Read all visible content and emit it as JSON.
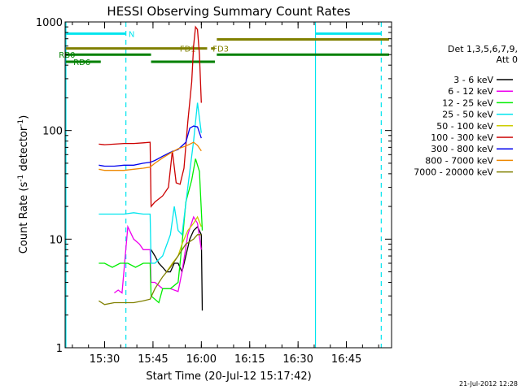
{
  "chart_data": {
    "type": "line",
    "title": "HESSI Observing Summary Count Rates",
    "xlabel": "Start Time (20-Jul-12 15:17:42)",
    "ylabel": "Count Rate (s⁻¹ detector⁻¹)",
    "ylabel_parts": {
      "main": "Count Rate (s",
      "sup1": "-1",
      "mid": " detector",
      "sup2": "-1",
      "end": ")"
    },
    "y_scale": "log",
    "ylim": [
      1,
      1000
    ],
    "xlim": [
      15.2958,
      16.9833
    ],
    "x_ticks": [
      {
        "value": 15.5,
        "label": "15:30"
      },
      {
        "value": 15.75,
        "label": "15:45"
      },
      {
        "value": 16.0,
        "label": "16:00"
      },
      {
        "value": 16.25,
        "label": "16:15"
      },
      {
        "value": 16.5,
        "label": "16:30"
      },
      {
        "value": 16.75,
        "label": "16:45"
      }
    ],
    "y_ticks": [
      {
        "value": 1,
        "label": "1"
      },
      {
        "value": 10,
        "label": "10"
      },
      {
        "value": 100,
        "label": "100"
      },
      {
        "value": 1000,
        "label": "1000"
      }
    ],
    "legend_header": [
      "Det 1,3,5,6,7,9,",
      "Att 0"
    ],
    "legend_position": "right",
    "timestamp": "21-Jul-2012 12:28",
    "vertical_lines": [
      {
        "x": 15.3,
        "style": "solid",
        "color": "#00e5ee"
      },
      {
        "x": 15.61,
        "style": "dashed",
        "color": "#00e5ee"
      },
      {
        "x": 16.59,
        "style": "solid",
        "color": "#00e5ee"
      },
      {
        "x": 16.93,
        "style": "dashed",
        "color": "#00e5ee"
      }
    ],
    "flag_bars": [
      {
        "label": "N",
        "color": "#00e5ee",
        "y": 780,
        "segments": [
          [
            15.3,
            15.61
          ],
          [
            16.59,
            16.93
          ]
        ],
        "label_x": 15.615
      },
      {
        "label": "FD1",
        "color": "#808000",
        "y": 570,
        "segments": [
          [
            15.3,
            16.03
          ]
        ],
        "label_x": 15.88
      },
      {
        "label": "FD3",
        "color": "#808000",
        "y": 570,
        "segments": [
          [
            16.05,
            16.07
          ]
        ],
        "label_x": 16.05
      },
      {
        "label": "",
        "color": "#808000",
        "y": 690,
        "segments": [
          [
            16.08,
            16.97
          ]
        ],
        "label_x": null
      },
      {
        "label": "RB0",
        "color": "#008000",
        "y": 500,
        "segments": [
          [
            15.3,
            15.74
          ],
          [
            16.08,
            16.97
          ]
        ],
        "label_x": 15.255
      },
      {
        "label": "RD6",
        "color": "#008000",
        "y": 430,
        "segments": [
          [
            15.3,
            15.48
          ],
          [
            15.74,
            16.07
          ]
        ],
        "label_x": 15.33
      }
    ],
    "series": [
      {
        "name": "3 - 6 keV",
        "color": "#000000",
        "x": [
          15.735,
          15.74,
          15.76,
          15.78,
          15.8,
          15.82,
          15.84,
          15.86,
          15.88,
          15.9,
          15.92,
          15.94,
          15.96,
          15.98,
          16.0,
          16.005
        ],
        "y": [
          8,
          8,
          7,
          6,
          5.5,
          5,
          5,
          6,
          6,
          5,
          7,
          10,
          12,
          13,
          11,
          2.2
        ]
      },
      {
        "name": "6 - 12 keV",
        "color": "#ee00ee",
        "x": [
          15.55,
          15.57,
          15.59,
          15.62,
          15.65,
          15.68,
          15.7,
          15.735,
          15.74,
          15.76,
          15.8,
          15.84,
          15.88,
          15.9,
          15.93,
          15.96,
          15.98,
          16.0
        ],
        "y": [
          3.2,
          3.4,
          3.2,
          13,
          10,
          9,
          8,
          8,
          4,
          4,
          3.5,
          3.5,
          3.3,
          5,
          11,
          16,
          14,
          8
        ]
      },
      {
        "name": "12 - 25 keV",
        "color": "#00ee00",
        "x": [
          15.47,
          15.5,
          15.54,
          15.58,
          15.62,
          15.66,
          15.7,
          15.735,
          15.74,
          15.78,
          15.8,
          15.84,
          15.88,
          15.9,
          15.92,
          15.95,
          15.97,
          15.99,
          16.005
        ],
        "y": [
          6,
          6,
          5.5,
          6,
          6,
          5.5,
          6,
          6,
          3,
          2.6,
          3.5,
          3.5,
          4,
          9,
          22,
          35,
          55,
          42,
          12
        ]
      },
      {
        "name": "25 - 50 keV",
        "color": "#00e5ee",
        "x": [
          15.47,
          15.5,
          15.55,
          15.6,
          15.65,
          15.7,
          15.735,
          15.74,
          15.76,
          15.8,
          15.84,
          15.86,
          15.88,
          15.9,
          15.93,
          15.96,
          15.98,
          16.0
        ],
        "y": [
          17,
          17,
          17,
          17,
          17.5,
          17,
          17,
          6,
          6,
          7,
          11,
          20,
          12,
          11,
          30,
          80,
          180,
          95
        ]
      },
      {
        "name": "50 - 100 keV",
        "color": "#cccc00",
        "x": [
          15.82,
          15.85,
          15.88,
          15.9,
          15.93,
          15.96,
          15.98,
          16.0
        ],
        "y": [
          5,
          6,
          7,
          9,
          12,
          14,
          16,
          13
        ]
      },
      {
        "name": "100 - 300 keV",
        "color": "#cc0000",
        "x": [
          15.47,
          15.5,
          15.55,
          15.6,
          15.65,
          15.7,
          15.735,
          15.74,
          15.76,
          15.8,
          15.83,
          15.85,
          15.87,
          15.89,
          15.91,
          15.93,
          15.95,
          15.96,
          15.97,
          15.98,
          15.99,
          16.0
        ],
        "y": [
          75,
          74,
          75,
          76,
          76,
          77,
          78,
          20,
          22,
          25,
          30,
          65,
          33,
          32,
          45,
          120,
          280,
          600,
          900,
          850,
          500,
          180
        ]
      },
      {
        "name": "300 - 800 keV",
        "color": "#0000ee",
        "x": [
          15.47,
          15.5,
          15.55,
          15.6,
          15.65,
          15.7,
          15.735,
          15.76,
          15.8,
          15.84,
          15.88,
          15.92,
          15.94,
          15.96,
          15.98,
          16.0
        ],
        "y": [
          48,
          47,
          47,
          48,
          48,
          50,
          51,
          53,
          58,
          63,
          67,
          78,
          105,
          110,
          108,
          85
        ]
      },
      {
        "name": "800 - 7000 keV",
        "color": "#ee8800",
        "x": [
          15.47,
          15.5,
          15.55,
          15.6,
          15.65,
          15.7,
          15.735,
          15.76,
          15.8,
          15.84,
          15.88,
          15.92,
          15.94,
          15.96,
          15.98,
          16.0
        ],
        "y": [
          44,
          43,
          43,
          43,
          44,
          45,
          46,
          50,
          56,
          62,
          68,
          72,
          75,
          78,
          73,
          65
        ]
      },
      {
        "name": "7000 - 20000 keV",
        "color": "#808000",
        "x": [
          15.47,
          15.5,
          15.55,
          15.6,
          15.65,
          15.7,
          15.735,
          15.76,
          15.8,
          15.84,
          15.88,
          15.92,
          15.96,
          15.98,
          16.0
        ],
        "y": [
          2.7,
          2.5,
          2.6,
          2.6,
          2.6,
          2.7,
          2.8,
          3.5,
          4.5,
          5.5,
          7,
          9,
          10,
          11,
          11
        ]
      }
    ]
  }
}
